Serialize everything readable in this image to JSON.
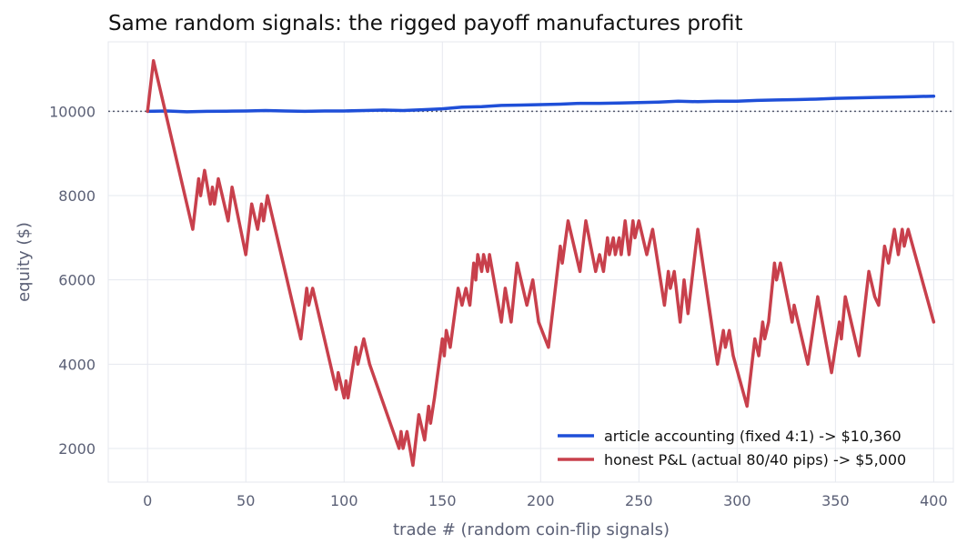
{
  "chart_data": {
    "type": "line",
    "title": "Same random signals: the rigged payoff manufactures profit",
    "xlabel": "trade # (random coin-flip signals)",
    "ylabel": "equity ($)",
    "xlim": [
      -20,
      410
    ],
    "ylim": [
      1200,
      11650
    ],
    "x_ticks": [
      0,
      50,
      100,
      150,
      200,
      250,
      300,
      350,
      400
    ],
    "y_ticks": [
      2000,
      4000,
      6000,
      8000,
      10000
    ],
    "grid": true,
    "reference_line": {
      "y": 10000,
      "style": "dotted",
      "color": "#555a6e"
    },
    "legend": {
      "position": "bottom-right"
    },
    "series": [
      {
        "name": "article accounting (fixed 4:1) -> $10,360",
        "color": "#1f4fd8",
        "points": [
          [
            0,
            10000
          ],
          [
            10,
            10010
          ],
          [
            20,
            9990
          ],
          [
            30,
            10000
          ],
          [
            40,
            10005
          ],
          [
            50,
            10010
          ],
          [
            60,
            10020
          ],
          [
            70,
            10010
          ],
          [
            80,
            10000
          ],
          [
            90,
            10010
          ],
          [
            100,
            10010
          ],
          [
            110,
            10020
          ],
          [
            120,
            10030
          ],
          [
            130,
            10020
          ],
          [
            140,
            10040
          ],
          [
            150,
            10060
          ],
          [
            160,
            10100
          ],
          [
            170,
            10110
          ],
          [
            180,
            10140
          ],
          [
            190,
            10150
          ],
          [
            200,
            10160
          ],
          [
            210,
            10170
          ],
          [
            220,
            10190
          ],
          [
            230,
            10190
          ],
          [
            240,
            10200
          ],
          [
            250,
            10210
          ],
          [
            260,
            10220
          ],
          [
            270,
            10240
          ],
          [
            280,
            10230
          ],
          [
            290,
            10240
          ],
          [
            300,
            10240
          ],
          [
            310,
            10260
          ],
          [
            320,
            10270
          ],
          [
            330,
            10280
          ],
          [
            340,
            10290
          ],
          [
            350,
            10310
          ],
          [
            360,
            10320
          ],
          [
            370,
            10330
          ],
          [
            380,
            10340
          ],
          [
            390,
            10350
          ],
          [
            400,
            10360
          ]
        ]
      },
      {
        "name": "honest P&L (actual 80/40 pips) -> $5,000",
        "color": "#c8404c",
        "points": [
          [
            0,
            10000
          ],
          [
            3,
            11200
          ],
          [
            23,
            7200
          ],
          [
            26,
            8400
          ],
          [
            27,
            8000
          ],
          [
            29,
            8600
          ],
          [
            32,
            7800
          ],
          [
            33,
            8200
          ],
          [
            34,
            7800
          ],
          [
            36,
            8400
          ],
          [
            41,
            7400
          ],
          [
            43,
            8200
          ],
          [
            50,
            6600
          ],
          [
            53,
            7800
          ],
          [
            56,
            7200
          ],
          [
            58,
            7800
          ],
          [
            59,
            7400
          ],
          [
            61,
            8000
          ],
          [
            78,
            4600
          ],
          [
            81,
            5800
          ],
          [
            82,
            5400
          ],
          [
            84,
            5800
          ],
          [
            96,
            3400
          ],
          [
            97,
            3800
          ],
          [
            100,
            3200
          ],
          [
            101,
            3600
          ],
          [
            102,
            3200
          ],
          [
            106,
            4400
          ],
          [
            107,
            4000
          ],
          [
            110,
            4600
          ],
          [
            113,
            4000
          ],
          [
            128,
            2000
          ],
          [
            129,
            2400
          ],
          [
            130,
            2000
          ],
          [
            132,
            2400
          ],
          [
            135,
            1600
          ],
          [
            138,
            2800
          ],
          [
            141,
            2200
          ],
          [
            143,
            3000
          ],
          [
            144,
            2600
          ],
          [
            146,
            3200
          ],
          [
            150,
            4600
          ],
          [
            151,
            4200
          ],
          [
            152,
            4800
          ],
          [
            154,
            4400
          ],
          [
            158,
            5800
          ],
          [
            160,
            5400
          ],
          [
            162,
            5800
          ],
          [
            164,
            5400
          ],
          [
            166,
            6400
          ],
          [
            167,
            6000
          ],
          [
            168,
            6600
          ],
          [
            170,
            6200
          ],
          [
            171,
            6600
          ],
          [
            173,
            6200
          ],
          [
            174,
            6600
          ],
          [
            180,
            5000
          ],
          [
            182,
            5800
          ],
          [
            185,
            5000
          ],
          [
            188,
            6400
          ],
          [
            193,
            5400
          ],
          [
            196,
            6000
          ],
          [
            199,
            5000
          ],
          [
            204,
            4400
          ],
          [
            210,
            6800
          ],
          [
            211,
            6400
          ],
          [
            214,
            7400
          ],
          [
            220,
            6200
          ],
          [
            223,
            7400
          ],
          [
            228,
            6200
          ],
          [
            230,
            6600
          ],
          [
            232,
            6200
          ],
          [
            234,
            7000
          ],
          [
            235,
            6600
          ],
          [
            237,
            7000
          ],
          [
            238,
            6600
          ],
          [
            240,
            7000
          ],
          [
            241,
            6600
          ],
          [
            243,
            7400
          ],
          [
            245,
            6600
          ],
          [
            247,
            7400
          ],
          [
            248,
            7000
          ],
          [
            250,
            7400
          ],
          [
            254,
            6600
          ],
          [
            257,
            7200
          ],
          [
            263,
            5400
          ],
          [
            265,
            6200
          ],
          [
            266,
            5800
          ],
          [
            268,
            6200
          ],
          [
            271,
            5000
          ],
          [
            273,
            6000
          ],
          [
            275,
            5200
          ],
          [
            280,
            7200
          ],
          [
            290,
            4000
          ],
          [
            293,
            4800
          ],
          [
            294,
            4400
          ],
          [
            296,
            4800
          ],
          [
            298,
            4200
          ],
          [
            305,
            3000
          ],
          [
            309,
            4600
          ],
          [
            311,
            4200
          ],
          [
            313,
            5000
          ],
          [
            314,
            4600
          ],
          [
            316,
            5000
          ],
          [
            319,
            6400
          ],
          [
            320,
            6000
          ],
          [
            322,
            6400
          ],
          [
            328,
            5000
          ],
          [
            329,
            5400
          ],
          [
            331,
            5000
          ],
          [
            336,
            4000
          ],
          [
            341,
            5600
          ],
          [
            348,
            3800
          ],
          [
            352,
            5000
          ],
          [
            353,
            4600
          ],
          [
            355,
            5600
          ],
          [
            362,
            4200
          ],
          [
            367,
            6200
          ],
          [
            370,
            5600
          ],
          [
            372,
            5400
          ],
          [
            375,
            6800
          ],
          [
            377,
            6400
          ],
          [
            380,
            7200
          ],
          [
            382,
            6600
          ],
          [
            384,
            7200
          ],
          [
            385,
            6800
          ],
          [
            387,
            7200
          ],
          [
            400,
            5000
          ]
        ]
      }
    ]
  }
}
